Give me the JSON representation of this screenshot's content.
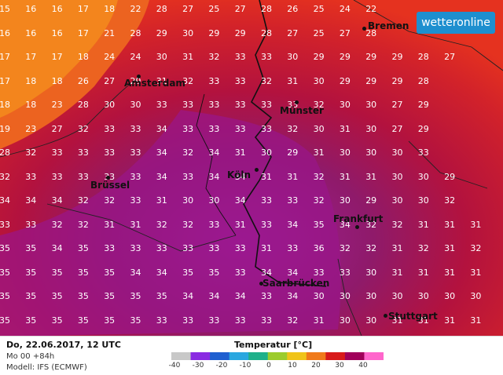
{
  "logo": "wetteronline",
  "grid": {
    "columns": 20,
    "rows": [
      [
        15,
        16,
        16,
        17,
        18,
        22,
        28,
        27,
        25,
        27,
        28,
        26,
        25,
        24,
        22
      ],
      [
        16,
        16,
        16,
        17,
        21,
        28,
        29,
        30,
        29,
        29,
        28,
        27,
        25,
        27,
        28
      ],
      [
        17,
        17,
        17,
        18,
        24,
        24,
        30,
        31,
        32,
        33,
        33,
        30,
        29,
        29,
        29,
        29,
        28,
        27
      ],
      [
        17,
        18,
        18,
        26,
        27,
        29,
        31,
        32,
        33,
        33,
        32,
        31,
        30,
        29,
        29,
        29,
        28
      ],
      [
        18,
        18,
        23,
        28,
        30,
        30,
        33,
        33,
        33,
        33,
        33,
        33,
        32,
        30,
        30,
        27,
        29
      ],
      [
        19,
        23,
        27,
        32,
        33,
        33,
        34,
        33,
        33,
        33,
        33,
        32,
        30,
        31,
        30,
        27,
        29
      ],
      [
        28,
        32,
        33,
        33,
        33,
        33,
        34,
        32,
        34,
        31,
        30,
        29,
        31,
        30,
        30,
        30,
        33
      ],
      [
        32,
        33,
        33,
        33,
        33,
        33,
        34,
        33,
        34,
        34,
        31,
        31,
        32,
        31,
        31,
        30,
        30,
        29
      ],
      [
        34,
        34,
        34,
        32,
        32,
        33,
        31,
        30,
        30,
        34,
        33,
        33,
        32,
        30,
        29,
        30,
        30,
        32
      ],
      [
        33,
        33,
        32,
        32,
        31,
        31,
        32,
        32,
        33,
        31,
        33,
        34,
        35,
        34,
        32,
        32,
        31,
        31,
        31
      ],
      [
        35,
        35,
        34,
        35,
        33,
        33,
        33,
        33,
        33,
        33,
        31,
        33,
        36,
        32,
        32,
        31,
        32,
        31,
        32
      ],
      [
        35,
        35,
        35,
        35,
        35,
        34,
        34,
        35,
        35,
        33,
        34,
        34,
        33,
        33,
        30,
        31,
        31,
        31,
        31
      ],
      [
        35,
        35,
        35,
        35,
        35,
        35,
        35,
        34,
        34,
        34,
        33,
        34,
        30,
        30,
        30,
        30,
        30,
        30,
        30
      ],
      [
        35,
        35,
        35,
        35,
        35,
        35,
        33,
        33,
        33,
        33,
        33,
        32,
        31,
        30,
        30,
        31,
        31,
        31,
        31
      ]
    ]
  },
  "cities": [
    {
      "name": "Bremen",
      "label": "Bremen"
    },
    {
      "name": "Amsterdam",
      "label": "Amsterdam"
    },
    {
      "name": "Munster",
      "label": "Münster"
    },
    {
      "name": "Brussel",
      "label": "Brüssel"
    },
    {
      "name": "Koln",
      "label": "Köln"
    },
    {
      "name": "Frankfurt",
      "label": "Frankfurt"
    },
    {
      "name": "Saarbrucken",
      "label": "Saarbrücken"
    },
    {
      "name": "Stuttgart",
      "label": "Stuttgart"
    }
  ],
  "footer": {
    "date": "Do, 22.06.2017, 12 UTC",
    "run": "Mo 00 +84h",
    "model": "Modell: IFS (ECMWF)"
  },
  "legend": {
    "title": "Temperatur [°C]",
    "ticks": [
      "-40",
      "-30",
      "-20",
      "-10",
      "0",
      "10",
      "20",
      "30",
      "40"
    ],
    "colors": [
      "#c8c8c8",
      "#8a2be2",
      "#1f5fd0",
      "#2aa7e0",
      "#1fb08a",
      "#9ccc2c",
      "#f0c419",
      "#f07a1a",
      "#d81a1a",
      "#a0005a",
      "#ff66cc"
    ]
  }
}
